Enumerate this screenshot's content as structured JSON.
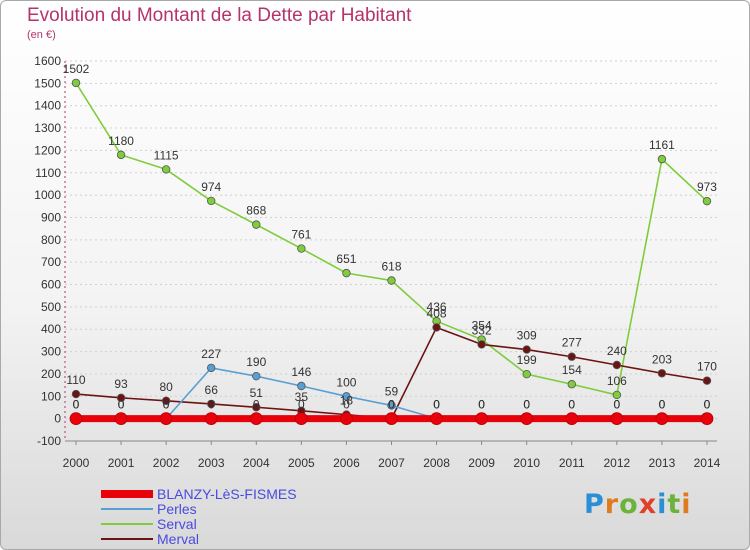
{
  "title": "Evolution du Montant de la Dette par Habitant",
  "unit": "(en €)",
  "brand": {
    "text": "Proxiti",
    "letter_colors": [
      "#2a8fd6",
      "#e07a1f",
      "#6bb33a",
      "#e0402a",
      "#2a8fd6",
      "#6bb33a",
      "#e07a1f"
    ]
  },
  "colors": {
    "title": "#b5336b",
    "grid": "#d0d0d0",
    "axis_text": "#333333",
    "value_label": "#333333"
  },
  "chart_data": {
    "type": "line",
    "title": "Evolution du Montant de la Dette par Habitant",
    "subtitle": "(en €)",
    "x": [
      "2000",
      "2001",
      "2002",
      "2003",
      "2004",
      "2005",
      "2006",
      "2007",
      "2008",
      "2009",
      "2010",
      "2011",
      "2012",
      "2013",
      "2014"
    ],
    "ylim": [
      -100,
      1600
    ],
    "yticks": [
      -100,
      0,
      100,
      200,
      300,
      400,
      500,
      600,
      700,
      800,
      900,
      1000,
      1100,
      1200,
      1300,
      1400,
      1500,
      1600
    ],
    "grid": "horizontal dashed",
    "legend_position": "bottom-left",
    "series": [
      {
        "name": "BLANZY-LèS-FISMES",
        "color": "#e8000b",
        "line_width": "thick",
        "values": [
          0,
          0,
          0,
          0,
          0,
          0,
          0,
          0,
          0,
          0,
          0,
          0,
          0,
          0,
          0
        ],
        "labels": [
          "0",
          "0",
          "0",
          "0",
          "0",
          "0",
          "0",
          "0",
          "0",
          "0",
          "0",
          "0",
          "0",
          "0",
          "0"
        ]
      },
      {
        "name": "Perles",
        "color": "#5a9fd4",
        "line_width": "normal",
        "values": [
          0,
          0,
          0,
          227,
          190,
          146,
          100,
          59,
          0,
          0,
          0,
          0,
          0,
          0,
          0
        ],
        "labels": [
          "0",
          "0",
          "0",
          "227",
          "190",
          "146",
          "100",
          "59",
          "0",
          "0",
          "0",
          "0",
          "0",
          "0",
          "0"
        ]
      },
      {
        "name": "Serval",
        "color": "#7fcc3c",
        "line_width": "normal",
        "values": [
          1502,
          1180,
          1115,
          974,
          868,
          761,
          651,
          618,
          436,
          354,
          199,
          154,
          106,
          1161,
          973
        ],
        "labels": [
          "1502",
          "1180",
          "1115",
          "974",
          "868",
          "761",
          "651",
          "618",
          "436",
          "354",
          "199",
          "154",
          "106",
          "1161",
          "973"
        ]
      },
      {
        "name": "Merval",
        "color": "#6a1414",
        "line_width": "normal",
        "values": [
          110,
          93,
          80,
          66,
          51,
          35,
          18,
          0,
          408,
          332,
          309,
          277,
          240,
          203,
          170
        ],
        "labels": [
          "110",
          "93",
          "80",
          "66",
          "51",
          "35",
          "18",
          "0",
          "408",
          "332",
          "309",
          "277",
          "240",
          "203",
          "170"
        ]
      }
    ]
  }
}
